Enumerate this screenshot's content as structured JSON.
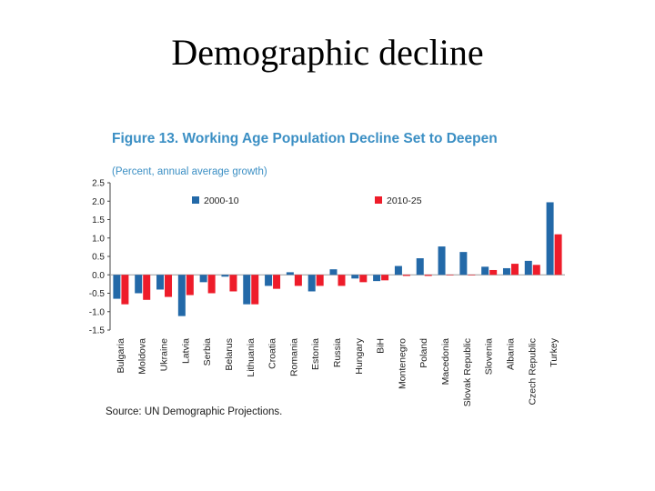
{
  "slide": {
    "title": "Demographic decline"
  },
  "colors": {
    "title_blue": "#3b8fc4",
    "series_a": "#2369a8",
    "series_b": "#ee1c2a",
    "axis": "#444444",
    "text": "#222222"
  },
  "chart_data": {
    "type": "bar",
    "title": "Figure 13. Working Age Population Decline Set to Deepen",
    "subtitle": "(Percent, annual average growth)",
    "source": "Source: UN Demographic Projections.",
    "xlabel": "",
    "ylabel": "",
    "ylim": [
      -1.5,
      2.5
    ],
    "yticks": [
      "2.5",
      "2.0",
      "1.5",
      "1.0",
      "0.5",
      "0.0",
      "-0.5",
      "-1.0",
      "-1.5"
    ],
    "legend_position": "top",
    "categories": [
      "Bulgaria",
      "Moldova",
      "Ukraine",
      "Latvia",
      "Serbia",
      "Belarus",
      "Lithuania",
      "Croatia",
      "Romania",
      "Estonia",
      "Russia",
      "Hungary",
      "BiH",
      "Montenegro",
      "Poland",
      "Macedonia",
      "Slovak Republic",
      "Slovenia",
      "Albania",
      "Czech Republic",
      "Turkey"
    ],
    "series": [
      {
        "name": "2000-10",
        "values": [
          -0.65,
          -0.5,
          -0.4,
          -1.12,
          -0.2,
          -0.05,
          -0.8,
          -0.3,
          0.07,
          -0.45,
          0.15,
          -0.1,
          -0.17,
          0.24,
          0.45,
          0.77,
          0.62,
          0.22,
          0.18,
          0.38,
          1.97
        ]
      },
      {
        "name": "2010-25",
        "values": [
          -0.8,
          -0.68,
          -0.6,
          -0.55,
          -0.5,
          -0.45,
          -0.8,
          -0.38,
          -0.3,
          -0.3,
          -0.3,
          -0.2,
          -0.15,
          -0.03,
          -0.03,
          0.0,
          0.0,
          0.13,
          0.3,
          0.27,
          1.1
        ]
      }
    ]
  }
}
